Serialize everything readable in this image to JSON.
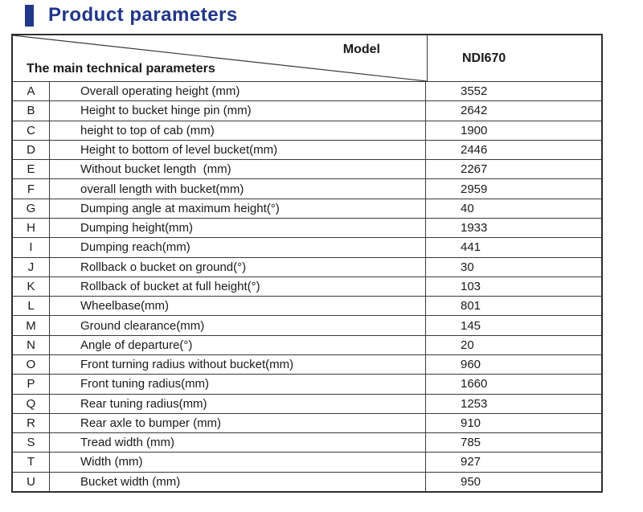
{
  "page": {
    "title": "Product parameters"
  },
  "colors": {
    "accent_blue": "#203689",
    "border_dark": "#2e2e2e",
    "border_inner": "#3a3a3a",
    "text": "#1a1a1a"
  },
  "table": {
    "header": {
      "model_label": "Model",
      "params_label": "The main technical parameters",
      "model_value": "NDI670"
    },
    "rows": [
      {
        "key": "A",
        "label": "Overall operating height (mm)",
        "value": "3552"
      },
      {
        "key": "B",
        "label": "Height to bucket hinge pin (mm)",
        "value": "2642"
      },
      {
        "key": "C",
        "label": "height to top of cab (mm)",
        "value": "1900"
      },
      {
        "key": "D",
        "label": "Height to bottom of level bucket(mm)",
        "value": "2446"
      },
      {
        "key": "E",
        "label": "Without bucket length  (mm)",
        "value": "2267"
      },
      {
        "key": "F",
        "label": "overall length with bucket(mm)",
        "value": "2959"
      },
      {
        "key": "G",
        "label": "Dumping angle at maximum height(°)",
        "value": "40"
      },
      {
        "key": "H",
        "label": "Dumping height(mm)",
        "value": "1933"
      },
      {
        "key": "I",
        "label": "Dumping reach(mm)",
        "value": "441"
      },
      {
        "key": "J",
        "label": "Rollback o bucket on ground(°)",
        "value": "30"
      },
      {
        "key": "K",
        "label": "Rollback of bucket at full height(°)",
        "value": "103"
      },
      {
        "key": "L",
        "label": "Wheelbase(mm)",
        "value": "801"
      },
      {
        "key": "M",
        "label": "Ground clearance(mm)",
        "value": "145"
      },
      {
        "key": "N",
        "label": "Angle of departure(°)",
        "value": "20"
      },
      {
        "key": "O",
        "label": "Front turning radius without bucket(mm)",
        "value": "960"
      },
      {
        "key": "P",
        "label": "Front tuning radius(mm)",
        "value": "1660"
      },
      {
        "key": "Q",
        "label": "Rear tuning radius(mm)",
        "value": "1253"
      },
      {
        "key": "R",
        "label": "Rear axle to bumper (mm)",
        "value": "910"
      },
      {
        "key": "S",
        "label": "Tread width (mm)",
        "value": "785"
      },
      {
        "key": "T",
        "label": "Width (mm)",
        "value": "927"
      },
      {
        "key": "U",
        "label": "Bucket width (mm)",
        "value": "950"
      }
    ]
  }
}
